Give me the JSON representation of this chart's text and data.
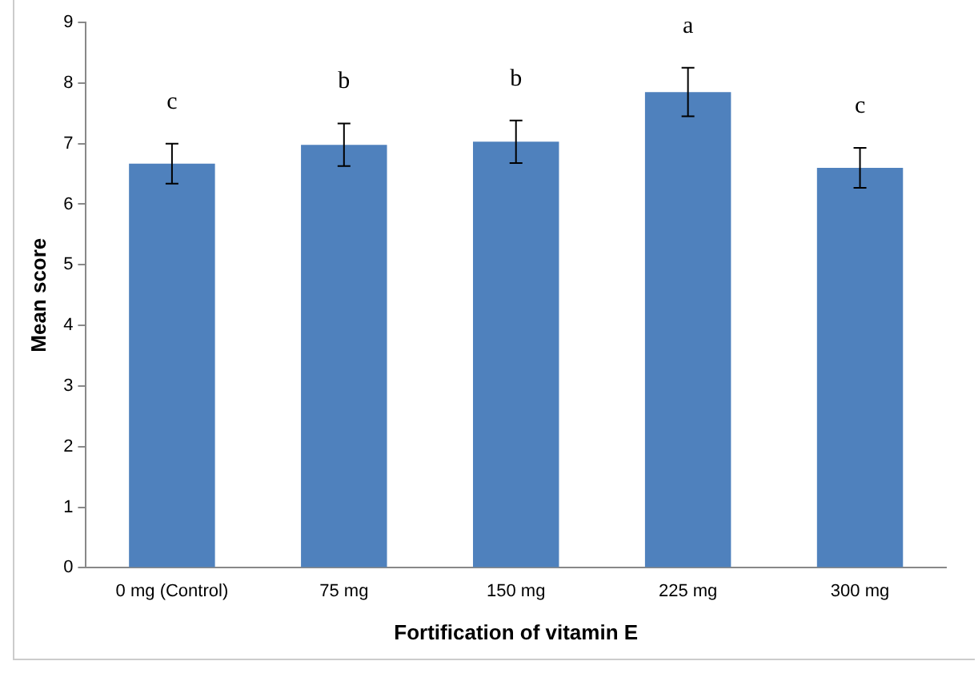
{
  "chart_data": {
    "type": "bar",
    "xlabel": "Fortification of vitamin E",
    "ylabel": "Mean score",
    "categories": [
      "0 mg (Control)",
      "75 mg",
      "150 mg",
      "225 mg",
      "300 mg"
    ],
    "values": [
      6.67,
      6.98,
      7.03,
      7.85,
      6.6
    ],
    "errors": [
      0.33,
      0.35,
      0.35,
      0.4,
      0.33
    ],
    "color": "#4f81bd",
    "ylim": [
      0,
      9
    ],
    "yticks": [
      0,
      1,
      2,
      3,
      4,
      5,
      6,
      7,
      8,
      9
    ],
    "grid": false,
    "legend": false,
    "annotations": [
      "c",
      "b",
      "b",
      "a",
      "c"
    ]
  }
}
